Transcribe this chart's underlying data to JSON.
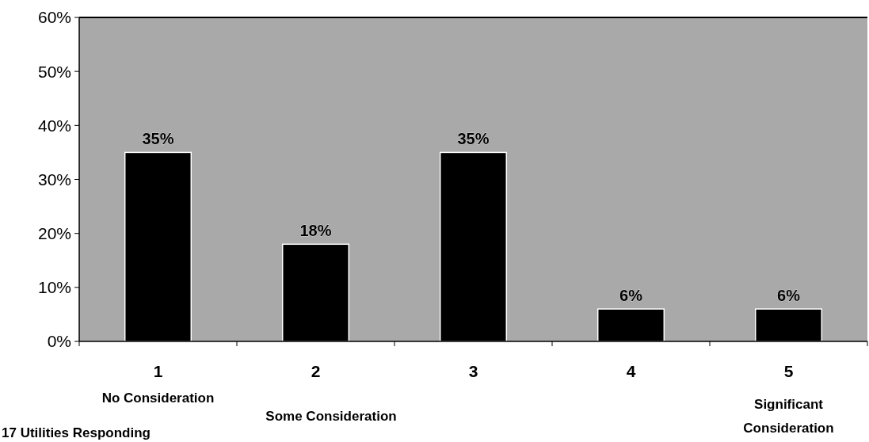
{
  "chart_data": {
    "type": "bar",
    "categories": [
      "1",
      "2",
      "3",
      "4",
      "5"
    ],
    "values": [
      35,
      18,
      35,
      6,
      6
    ],
    "color": "#000000",
    "ylim": [
      0,
      60
    ],
    "yticks": [
      {
        "value": 0,
        "label": "0%"
      },
      {
        "value": 10,
        "label": "10%"
      },
      {
        "value": 20,
        "label": "20%"
      },
      {
        "value": 30,
        "label": "30%"
      },
      {
        "value": 40,
        "label": "40%"
      },
      {
        "value": 50,
        "label": "50%"
      },
      {
        "value": 60,
        "label": "60%"
      }
    ],
    "value_labels": [
      "35%",
      "18%",
      "35%",
      "6%",
      "6%"
    ],
    "grid": false,
    "annotations": [
      "No Consideration",
      "Some Consideration",
      "Significant Consideration",
      "17 Utilities Responding"
    ]
  }
}
